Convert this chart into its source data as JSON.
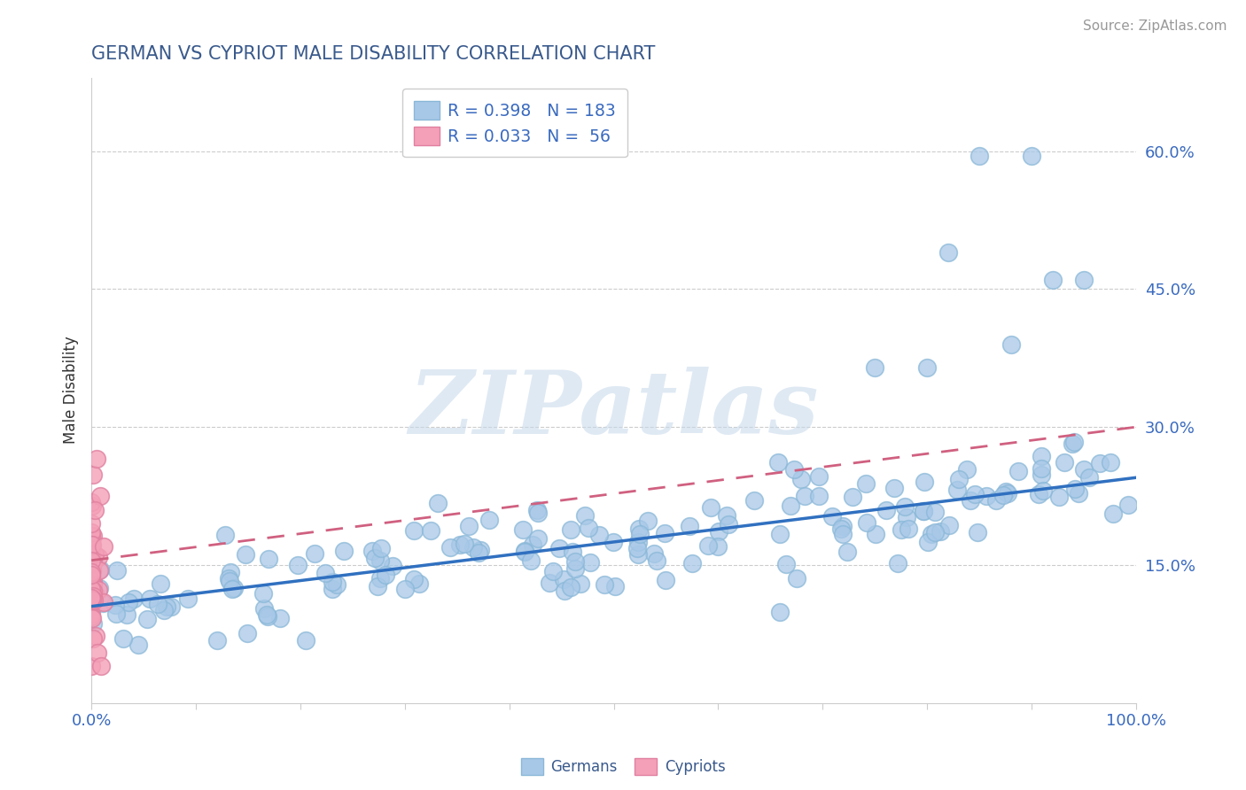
{
  "title": "GERMAN VS CYPRIOT MALE DISABILITY CORRELATION CHART",
  "source": "Source: ZipAtlas.com",
  "ylabel": "Male Disability",
  "xlim": [
    0.0,
    1.0
  ],
  "ylim": [
    0.0,
    0.68
  ],
  "yticks": [
    0.15,
    0.3,
    0.45,
    0.6
  ],
  "ytick_labels": [
    "15.0%",
    "30.0%",
    "45.0%",
    "60.0%"
  ],
  "german_R": 0.398,
  "german_N": 183,
  "cypriot_R": 0.033,
  "cypriot_N": 56,
  "german_color": "#a8c8e8",
  "cypriot_color": "#f4a0b8",
  "german_line_color": "#3070c0",
  "cypriot_line_color": "#d06080",
  "watermark_text": "ZIPatlas",
  "background_color": "#ffffff",
  "legend_color": "#3a6abf",
  "grid_color": "#cccccc",
  "title_color": "#3a5a8c",
  "axis_label_color": "#333333",
  "tick_color": "#3a6abf",
  "german_line_start_y": 0.105,
  "german_line_end_y": 0.245,
  "cypriot_line_start_y": 0.155,
  "cypriot_line_end_y": 0.3
}
